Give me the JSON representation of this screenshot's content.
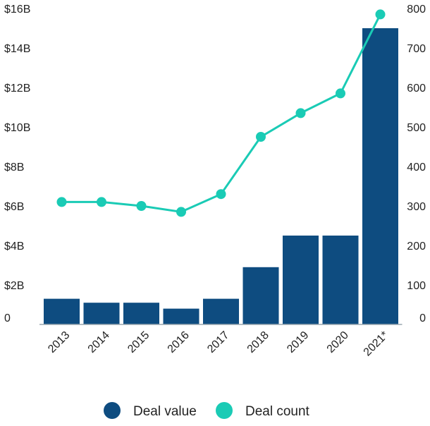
{
  "chart_data": {
    "type": "bar+line",
    "categories": [
      "2013",
      "2014",
      "2015",
      "2016",
      "2017",
      "2018",
      "2019",
      "2020",
      "2021*"
    ],
    "series": [
      {
        "name": "Deal value",
        "type": "bar",
        "axis": "left",
        "unit": "USD billions",
        "values": [
          1.3,
          1.1,
          1.1,
          0.8,
          1.3,
          2.9,
          4.5,
          4.5,
          15.0
        ]
      },
      {
        "name": "Deal count",
        "type": "line",
        "axis": "right",
        "values": [
          310,
          310,
          300,
          285,
          330,
          475,
          535,
          585,
          785
        ]
      }
    ],
    "y_left": {
      "min": 0,
      "max": 16,
      "ticks": [
        0,
        2,
        4,
        6,
        8,
        10,
        12,
        14,
        16
      ],
      "tick_labels": [
        "0",
        "$2B",
        "$4B",
        "$6B",
        "$8B",
        "$10B",
        "$12B",
        "$14B",
        "$16B"
      ]
    },
    "y_right": {
      "min": 0,
      "max": 800,
      "ticks": [
        0,
        100,
        200,
        300,
        400,
        500,
        600,
        700,
        800
      ],
      "tick_labels": [
        "0",
        "100",
        "200",
        "300",
        "400",
        "500",
        "600",
        "700",
        "800"
      ]
    },
    "legend": {
      "position": "bottom-center",
      "entries": [
        "Deal value",
        "Deal count"
      ]
    },
    "colors": {
      "bar": "#0e4c80",
      "line": "#1acbb5",
      "axis": "#9aa7b0"
    },
    "grid": false
  }
}
